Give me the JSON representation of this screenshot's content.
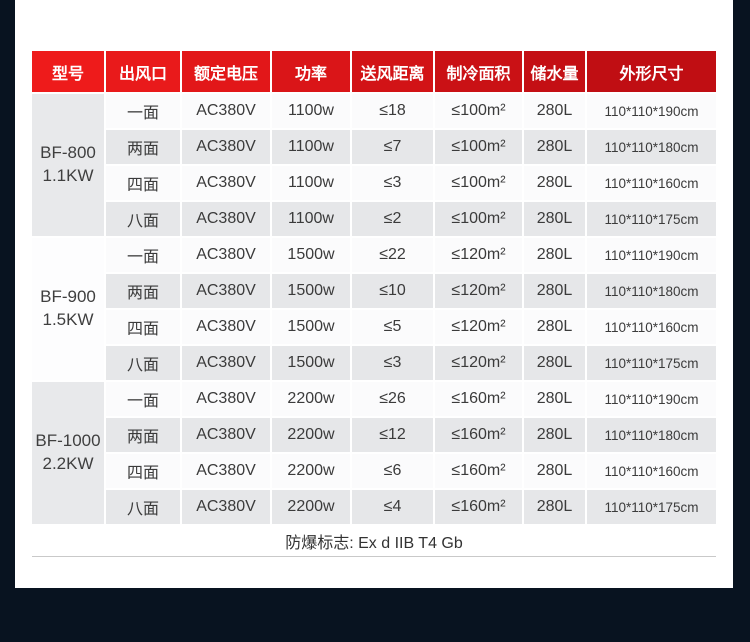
{
  "colors": {
    "page_bg": "#081320",
    "card_bg": "#ffffff",
    "row_gray": "#e6e7e9",
    "row_white": "#fbfbfc",
    "model_gray": "#e8e9eb",
    "model_white": "#fdfdfe",
    "text_dark": "#3b3b3b",
    "divider": "#c9c9c9",
    "header_text": "#ffffff"
  },
  "table": {
    "headers": [
      "型号",
      "出风口",
      "额定电压",
      "功率",
      "送风距离",
      "制冷面积",
      "储水量",
      "外形尺寸"
    ],
    "column_header_colors": [
      "#ee1b1b",
      "#e91a1b",
      "#e21719",
      "#da1518",
      "#d21316",
      "#ca1115",
      "#c40f14",
      "#c00e13"
    ],
    "groups": [
      {
        "model_line1": "BF-800",
        "model_line2": "1.1KW",
        "rows": [
          {
            "outlet": "一面",
            "voltage": "AC380V",
            "power": "1100w",
            "distance": "≤18",
            "area": "≤100m²",
            "water": "280L",
            "dimensions": "110*110*190cm"
          },
          {
            "outlet": "两面",
            "voltage": "AC380V",
            "power": "1100w",
            "distance": "≤7",
            "area": "≤100m²",
            "water": "280L",
            "dimensions": "110*110*180cm"
          },
          {
            "outlet": "四面",
            "voltage": "AC380V",
            "power": "1100w",
            "distance": "≤3",
            "area": "≤100m²",
            "water": "280L",
            "dimensions": "110*110*160cm"
          },
          {
            "outlet": "八面",
            "voltage": "AC380V",
            "power": "1100w",
            "distance": "≤2",
            "area": "≤100m²",
            "water": "280L",
            "dimensions": "110*110*175cm"
          }
        ]
      },
      {
        "model_line1": "BF-900",
        "model_line2": "1.5KW",
        "rows": [
          {
            "outlet": "一面",
            "voltage": "AC380V",
            "power": "1500w",
            "distance": "≤22",
            "area": "≤120m²",
            "water": "280L",
            "dimensions": "110*110*190cm"
          },
          {
            "outlet": "两面",
            "voltage": "AC380V",
            "power": "1500w",
            "distance": "≤10",
            "area": "≤120m²",
            "water": "280L",
            "dimensions": "110*110*180cm"
          },
          {
            "outlet": "四面",
            "voltage": "AC380V",
            "power": "1500w",
            "distance": "≤5",
            "area": "≤120m²",
            "water": "280L",
            "dimensions": "110*110*160cm"
          },
          {
            "outlet": "八面",
            "voltage": "AC380V",
            "power": "1500w",
            "distance": "≤3",
            "area": "≤120m²",
            "water": "280L",
            "dimensions": "110*110*175cm"
          }
        ]
      },
      {
        "model_line1": "BF-1000",
        "model_line2": "2.2KW",
        "rows": [
          {
            "outlet": "一面",
            "voltage": "AC380V",
            "power": "2200w",
            "distance": "≤26",
            "area": "≤160m²",
            "water": "280L",
            "dimensions": "110*110*190cm"
          },
          {
            "outlet": "两面",
            "voltage": "AC380V",
            "power": "2200w",
            "distance": "≤12",
            "area": "≤160m²",
            "water": "280L",
            "dimensions": "110*110*180cm"
          },
          {
            "outlet": "四面",
            "voltage": "AC380V",
            "power": "2200w",
            "distance": "≤6",
            "area": "≤160m²",
            "water": "280L",
            "dimensions": "110*110*160cm"
          },
          {
            "outlet": "八面",
            "voltage": "AC380V",
            "power": "2200w",
            "distance": "≤4",
            "area": "≤160m²",
            "water": "280L",
            "dimensions": "110*110*175cm"
          }
        ]
      }
    ],
    "footer_note": "防爆标志: Ex d IIB T4 Gb"
  }
}
